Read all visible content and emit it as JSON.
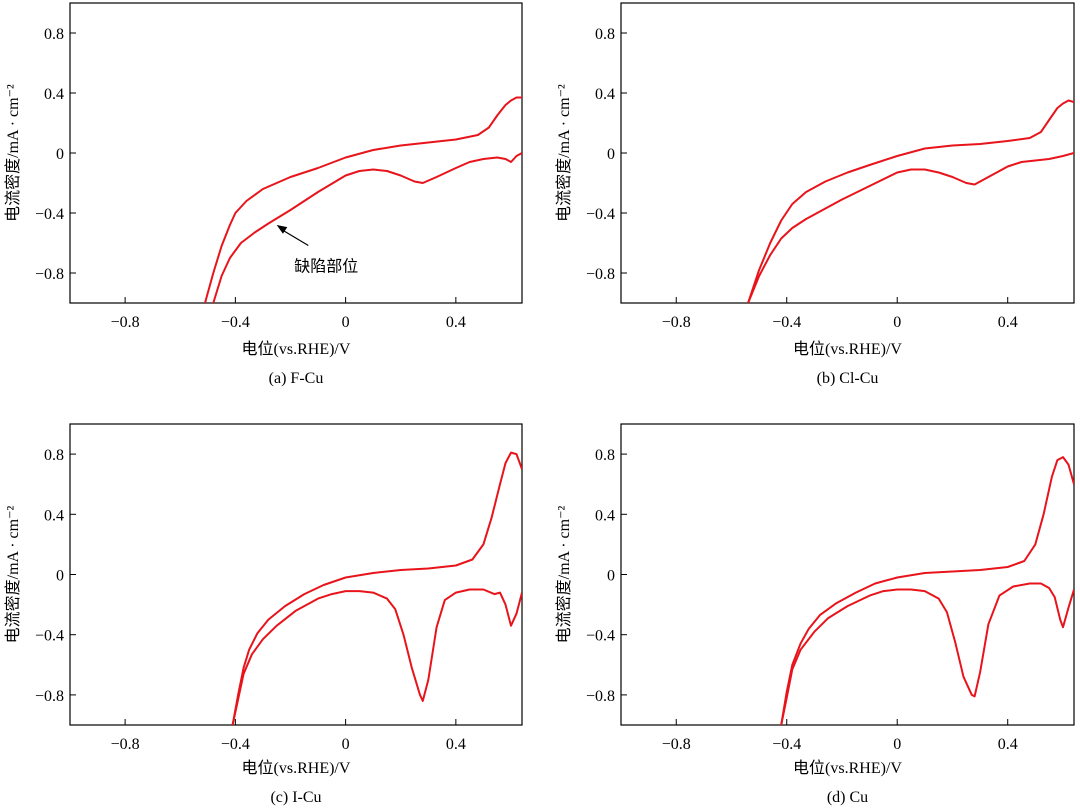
{
  "chart_data": [
    {
      "type": "line",
      "caption": "(a) F-Cu",
      "xlabel": "电位(vs.RHE)/V",
      "ylabel": "电流密度/mA · cm⁻²",
      "xlim": [
        -1.0,
        0.64
      ],
      "ylim": [
        -1.0,
        1.0
      ],
      "xticks": [
        -0.8,
        -0.4,
        0,
        0.4
      ],
      "xtick_labels": [
        "−0.8",
        "−0.4",
        "0",
        "0.4"
      ],
      "yticks": [
        0.8,
        0.4,
        0,
        -0.4,
        -0.8
      ],
      "ytick_labels": [
        "0.8",
        "0.4",
        "0",
        "−0.4",
        "−0.8"
      ],
      "color": "#e8141b",
      "series": [
        {
          "x": [
            -0.51,
            -0.48,
            -0.45,
            -0.42,
            -0.4,
            -0.36,
            -0.3,
            -0.2,
            -0.1,
            0.0,
            0.1,
            0.2,
            0.3,
            0.4,
            0.48,
            0.52,
            0.55,
            0.58,
            0.6,
            0.62,
            0.64
          ],
          "y": [
            -1.0,
            -0.8,
            -0.62,
            -0.48,
            -0.4,
            -0.32,
            -0.24,
            -0.16,
            -0.1,
            -0.03,
            0.02,
            0.05,
            0.07,
            0.09,
            0.12,
            0.17,
            0.25,
            0.32,
            0.35,
            0.37,
            0.37
          ]
        },
        {
          "x": [
            -0.48,
            -0.45,
            -0.42,
            -0.38,
            -0.33,
            -0.28,
            -0.2,
            -0.1,
            0.0,
            0.05,
            0.1,
            0.15,
            0.2,
            0.25,
            0.28,
            0.33,
            0.4,
            0.45,
            0.5,
            0.55,
            0.58,
            0.6,
            0.62,
            0.64
          ],
          "y": [
            -1.0,
            -0.82,
            -0.7,
            -0.6,
            -0.53,
            -0.47,
            -0.38,
            -0.26,
            -0.15,
            -0.12,
            -0.11,
            -0.12,
            -0.15,
            -0.19,
            -0.2,
            -0.16,
            -0.1,
            -0.06,
            -0.04,
            -0.03,
            -0.04,
            -0.06,
            -0.02,
            0.0
          ]
        }
      ],
      "annotation": {
        "text": "缺陷部位",
        "arrow_to": [
          -0.25,
          -0.48
        ],
        "text_at": [
          -0.07,
          -0.75
        ]
      }
    },
    {
      "type": "line",
      "caption": "(b) Cl-Cu",
      "xlabel": "电位(vs.RHE)/V",
      "ylabel": "电流密度/mA · cm⁻²",
      "xlim": [
        -1.0,
        0.64
      ],
      "ylim": [
        -1.0,
        1.0
      ],
      "xticks": [
        -0.8,
        -0.4,
        0,
        0.4
      ],
      "xtick_labels": [
        "−0.8",
        "−0.4",
        "0",
        "0.4"
      ],
      "yticks": [
        0.8,
        0.4,
        0,
        -0.4,
        -0.8
      ],
      "ytick_labels": [
        "0.8",
        "0.4",
        "0",
        "−0.4",
        "−0.8"
      ],
      "color": "#e8141b",
      "series": [
        {
          "x": [
            -0.54,
            -0.5,
            -0.46,
            -0.42,
            -0.38,
            -0.33,
            -0.26,
            -0.18,
            -0.1,
            0.0,
            0.1,
            0.2,
            0.3,
            0.4,
            0.48,
            0.52,
            0.55,
            0.58,
            0.6,
            0.62,
            0.64
          ],
          "y": [
            -1.0,
            -0.78,
            -0.6,
            -0.45,
            -0.34,
            -0.26,
            -0.19,
            -0.13,
            -0.08,
            -0.02,
            0.03,
            0.05,
            0.06,
            0.08,
            0.1,
            0.14,
            0.22,
            0.3,
            0.33,
            0.35,
            0.34
          ]
        },
        {
          "x": [
            -0.54,
            -0.5,
            -0.46,
            -0.42,
            -0.38,
            -0.33,
            -0.28,
            -0.2,
            -0.1,
            0.0,
            0.05,
            0.1,
            0.15,
            0.2,
            0.25,
            0.28,
            0.33,
            0.4,
            0.45,
            0.5,
            0.55,
            0.6,
            0.64
          ],
          "y": [
            -1.0,
            -0.82,
            -0.68,
            -0.57,
            -0.5,
            -0.44,
            -0.39,
            -0.31,
            -0.22,
            -0.13,
            -0.11,
            -0.11,
            -0.13,
            -0.16,
            -0.2,
            -0.21,
            -0.16,
            -0.09,
            -0.06,
            -0.05,
            -0.04,
            -0.02,
            0.0
          ]
        }
      ]
    },
    {
      "type": "line",
      "caption": "(c) I-Cu",
      "xlabel": "电位(vs.RHE)/V",
      "ylabel": "电流密度/mA · cm⁻²",
      "xlim": [
        -1.0,
        0.64
      ],
      "ylim": [
        -1.0,
        1.0
      ],
      "xticks": [
        -0.8,
        -0.4,
        0,
        0.4
      ],
      "xtick_labels": [
        "−0.8",
        "−0.4",
        "0",
        "0.4"
      ],
      "yticks": [
        0.8,
        0.4,
        0,
        -0.4,
        -0.8
      ],
      "ytick_labels": [
        "0.8",
        "0.4",
        "0",
        "−0.4",
        "−0.8"
      ],
      "color": "#e8141b",
      "series": [
        {
          "x": [
            -0.41,
            -0.39,
            -0.37,
            -0.35,
            -0.32,
            -0.28,
            -0.22,
            -0.15,
            -0.08,
            0.0,
            0.1,
            0.2,
            0.3,
            0.4,
            0.46,
            0.5,
            0.53,
            0.56,
            0.58,
            0.6,
            0.62,
            0.64
          ],
          "y": [
            -1.0,
            -0.8,
            -0.62,
            -0.5,
            -0.39,
            -0.3,
            -0.21,
            -0.13,
            -0.07,
            -0.02,
            0.01,
            0.03,
            0.04,
            0.06,
            0.1,
            0.2,
            0.38,
            0.6,
            0.74,
            0.81,
            0.8,
            0.7
          ]
        },
        {
          "x": [
            -0.41,
            -0.39,
            -0.37,
            -0.34,
            -0.3,
            -0.25,
            -0.18,
            -0.1,
            -0.05,
            0.0,
            0.05,
            0.1,
            0.15,
            0.18,
            0.21,
            0.24,
            0.27,
            0.28,
            0.3,
            0.33,
            0.36,
            0.4,
            0.45,
            0.5,
            0.54,
            0.56,
            0.58,
            0.6,
            0.62,
            0.64
          ],
          "y": [
            -1.0,
            -0.83,
            -0.66,
            -0.53,
            -0.43,
            -0.34,
            -0.24,
            -0.16,
            -0.13,
            -0.11,
            -0.11,
            -0.12,
            -0.16,
            -0.23,
            -0.4,
            -0.62,
            -0.8,
            -0.84,
            -0.7,
            -0.35,
            -0.17,
            -0.12,
            -0.1,
            -0.1,
            -0.13,
            -0.12,
            -0.2,
            -0.34,
            -0.26,
            -0.12
          ]
        }
      ]
    },
    {
      "type": "line",
      "caption": "(d) Cu",
      "xlabel": "电位(vs.RHE)/V",
      "ylabel": "电流密度/mA · cm⁻²",
      "xlim": [
        -1.0,
        0.64
      ],
      "ylim": [
        -1.0,
        1.0
      ],
      "xticks": [
        -0.8,
        -0.4,
        0,
        0.4
      ],
      "xtick_labels": [
        "−0.8",
        "−0.4",
        "0",
        "0.4"
      ],
      "yticks": [
        0.8,
        0.4,
        0,
        -0.4,
        -0.8
      ],
      "ytick_labels": [
        "0.8",
        "0.4",
        "0",
        "−0.4",
        "−0.8"
      ],
      "color": "#e8141b",
      "series": [
        {
          "x": [
            -0.42,
            -0.4,
            -0.38,
            -0.35,
            -0.32,
            -0.28,
            -0.22,
            -0.15,
            -0.08,
            0.0,
            0.1,
            0.2,
            0.3,
            0.4,
            0.46,
            0.5,
            0.53,
            0.56,
            0.58,
            0.6,
            0.62,
            0.64
          ],
          "y": [
            -1.0,
            -0.78,
            -0.6,
            -0.46,
            -0.36,
            -0.27,
            -0.19,
            -0.12,
            -0.06,
            -0.02,
            0.01,
            0.02,
            0.03,
            0.05,
            0.09,
            0.2,
            0.4,
            0.65,
            0.76,
            0.78,
            0.73,
            0.6
          ]
        },
        {
          "x": [
            -0.42,
            -0.4,
            -0.38,
            -0.35,
            -0.3,
            -0.25,
            -0.18,
            -0.1,
            -0.05,
            0.0,
            0.05,
            0.1,
            0.15,
            0.18,
            0.21,
            0.24,
            0.27,
            0.28,
            0.3,
            0.33,
            0.37,
            0.42,
            0.48,
            0.52,
            0.55,
            0.57,
            0.59,
            0.6,
            0.62,
            0.64
          ],
          "y": [
            -1.0,
            -0.82,
            -0.63,
            -0.5,
            -0.38,
            -0.29,
            -0.21,
            -0.14,
            -0.11,
            -0.1,
            -0.1,
            -0.11,
            -0.16,
            -0.25,
            -0.45,
            -0.68,
            -0.8,
            -0.81,
            -0.65,
            -0.33,
            -0.14,
            -0.08,
            -0.06,
            -0.06,
            -0.09,
            -0.15,
            -0.3,
            -0.35,
            -0.22,
            -0.1
          ]
        }
      ]
    }
  ]
}
